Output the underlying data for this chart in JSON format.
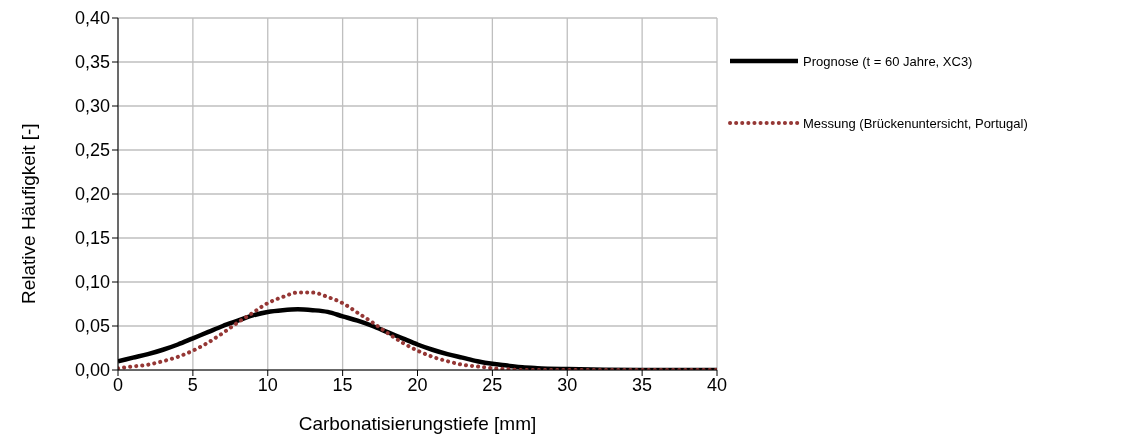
{
  "chart_data": {
    "type": "line",
    "xlabel": "Carbonatisierungstiefe [mm]",
    "ylabel": "Relative Häufigkeit [-]",
    "x": [
      0,
      1,
      2,
      3,
      4,
      5,
      6,
      7,
      8,
      9,
      10,
      11,
      12,
      13,
      14,
      15,
      16,
      17,
      18,
      19,
      20,
      21,
      22,
      23,
      24,
      25,
      26,
      27,
      28,
      30,
      35,
      40
    ],
    "series": [
      {
        "name": "Prognose (t = 60 Jahre, XC3)",
        "color": "#000000",
        "line_style": "solid",
        "values": [
          0.01,
          0.014,
          0.018,
          0.023,
          0.029,
          0.036,
          0.043,
          0.05,
          0.056,
          0.062,
          0.066,
          0.068,
          0.069,
          0.068,
          0.066,
          0.061,
          0.056,
          0.05,
          0.043,
          0.036,
          0.029,
          0.023,
          0.018,
          0.014,
          0.01,
          0.007,
          0.005,
          0.003,
          0.002,
          0.001,
          0.0,
          0.0
        ]
      },
      {
        "name": "Messung (Brückenuntersicht, Portugal)",
        "color": "#953735",
        "line_style": "dotted",
        "values": [
          0.002,
          0.004,
          0.006,
          0.01,
          0.015,
          0.022,
          0.031,
          0.042,
          0.054,
          0.065,
          0.076,
          0.083,
          0.088,
          0.088,
          0.083,
          0.076,
          0.065,
          0.054,
          0.042,
          0.031,
          0.022,
          0.015,
          0.01,
          0.006,
          0.004,
          0.002,
          0.001,
          0.0,
          0.0,
          0.0,
          0.0,
          0.0
        ]
      }
    ],
    "xlim": [
      0,
      40
    ],
    "xticks": [
      0,
      5,
      10,
      15,
      20,
      25,
      30,
      35,
      40
    ],
    "ylim": [
      0,
      0.4
    ],
    "yticks": [
      {
        "value": 0,
        "label": "0,00"
      },
      {
        "value": 0.05,
        "label": "0,05"
      },
      {
        "value": 0.1,
        "label": "0,10"
      },
      {
        "value": 0.15,
        "label": "0,15"
      },
      {
        "value": 0.2,
        "label": "0,20"
      },
      {
        "value": 0.25,
        "label": "0,25"
      },
      {
        "value": 0.3,
        "label": "0,30"
      },
      {
        "value": 0.35,
        "label": "0,35"
      },
      {
        "value": 0.4,
        "label": "0,40"
      }
    ],
    "grid": true,
    "legend": "right",
    "marker": "none"
  }
}
